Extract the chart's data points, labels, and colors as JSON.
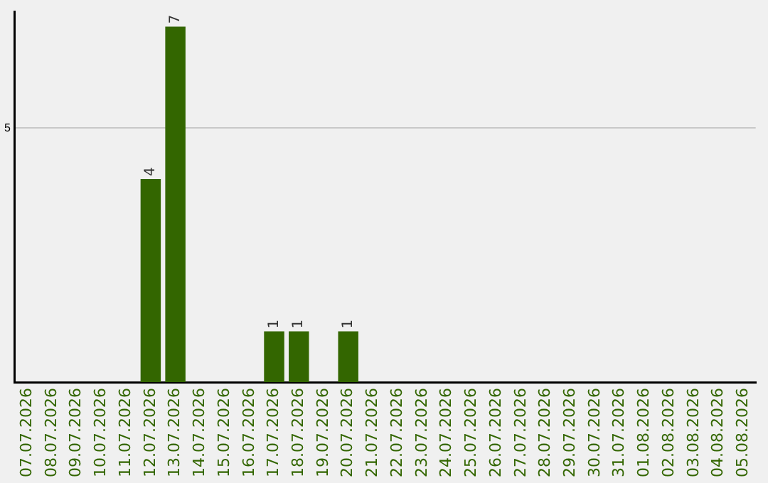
{
  "chart_data": {
    "type": "bar",
    "categories": [
      "07.07.2026",
      "08.07.2026",
      "09.07.2026",
      "10.07.2026",
      "11.07.2026",
      "12.07.2026",
      "13.07.2026",
      "14.07.2026",
      "15.07.2026",
      "16.07.2026",
      "17.07.2026",
      "18.07.2026",
      "19.07.2026",
      "20.07.2026",
      "21.07.2026",
      "22.07.2026",
      "23.07.2026",
      "24.07.2026",
      "25.07.2026",
      "26.07.2026",
      "27.07.2026",
      "28.07.2026",
      "29.07.2026",
      "30.07.2026",
      "31.07.2026",
      "01.08.2026",
      "02.08.2026",
      "03.08.2026",
      "04.08.2026",
      "05.08.2026"
    ],
    "values": [
      null,
      null,
      null,
      null,
      null,
      4,
      7,
      null,
      null,
      null,
      1,
      1,
      null,
      1,
      null,
      null,
      null,
      null,
      null,
      null,
      null,
      null,
      null,
      null,
      null,
      null,
      null,
      null,
      null,
      null
    ],
    "color": "#336600",
    "ylim": [
      0,
      7.3
    ],
    "yticks": [
      5
    ],
    "grid": "y",
    "data_labels": true,
    "legend": false
  }
}
